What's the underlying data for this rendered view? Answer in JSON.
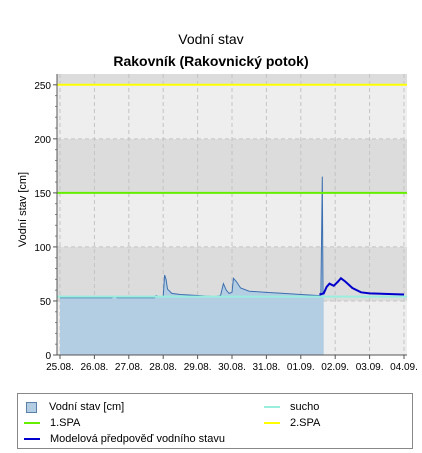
{
  "chart_data": {
    "type": "area",
    "title": "Vodní stav",
    "subtitle": "Rakovník (Rakovnický potok)",
    "ylabel": "Vodní stav [cm]",
    "xlabel": "",
    "ylim": [
      0,
      260
    ],
    "x_domain": [
      "25.08. 00:00",
      "04.09. 00:00"
    ],
    "yticks": [
      0,
      50,
      100,
      150,
      200,
      250
    ],
    "xtick_labels": [
      "25.08.",
      "26.08.",
      "27.08.",
      "28.08.",
      "29.08.",
      "30.08.",
      "31.08.",
      "01.09.",
      "02.09.",
      "03.09.",
      "04.09."
    ],
    "grid": true,
    "legend_position": "bottom",
    "series": [
      {
        "name": "Vodní stav [cm]",
        "kind": "observed-area",
        "points": [
          [
            "25.08. 00:00",
            53
          ],
          [
            "26.08. 00:00",
            53
          ],
          [
            "26.08. 12:00",
            53
          ],
          [
            "26.08. 14:00",
            54
          ],
          [
            "26.08. 16:00",
            53
          ],
          [
            "27.08. 00:00",
            53
          ],
          [
            "27.08. 18:00",
            53
          ],
          [
            "27.08. 19:00",
            55
          ],
          [
            "27.08. 21:00",
            54
          ],
          [
            "28.08. 00:00",
            54
          ],
          [
            "28.08. 01:00",
            74
          ],
          [
            "28.08. 02:00",
            70
          ],
          [
            "28.08. 03:00",
            61
          ],
          [
            "28.08. 06:00",
            57
          ],
          [
            "28.08. 12:00",
            56
          ],
          [
            "29.08. 00:00",
            55
          ],
          [
            "29.08. 12:00",
            54
          ],
          [
            "29.08. 16:00",
            55
          ],
          [
            "29.08. 18:00",
            66
          ],
          [
            "29.08. 20:00",
            60
          ],
          [
            "29.08. 22:00",
            57
          ],
          [
            "30.08. 00:00",
            58
          ],
          [
            "30.08. 01:00",
            71
          ],
          [
            "30.08. 03:00",
            68
          ],
          [
            "30.08. 06:00",
            62
          ],
          [
            "30.08. 12:00",
            59
          ],
          [
            "31.08. 00:00",
            58
          ],
          [
            "31.08. 12:00",
            57
          ],
          [
            "01.09. 00:00",
            56
          ],
          [
            "01.09. 12:00",
            55
          ],
          [
            "01.09. 14:00",
            55
          ],
          [
            "01.09. 15:00",
            165
          ],
          [
            "01.09. 15:30",
            57
          ],
          [
            "01.09. 16:00",
            56
          ]
        ]
      },
      {
        "name": "Modelová předpověď vodního stavu",
        "kind": "forecast-line",
        "color": "#0000cc",
        "points": [
          [
            "01.09. 13:00",
            56
          ],
          [
            "01.09. 16:00",
            57
          ],
          [
            "01.09. 18:00",
            63
          ],
          [
            "01.09. 20:00",
            66
          ],
          [
            "01.09. 23:00",
            64
          ],
          [
            "02.09. 02:00",
            68
          ],
          [
            "02.09. 04:00",
            71
          ],
          [
            "02.09. 07:00",
            68
          ],
          [
            "02.09. 12:00",
            62
          ],
          [
            "02.09. 18:00",
            58
          ],
          [
            "03.09. 00:00",
            57
          ],
          [
            "04.09. 00:00",
            56
          ]
        ]
      },
      {
        "name": "1.SPA",
        "kind": "threshold",
        "value": 150,
        "color": "#66ee00"
      },
      {
        "name": "2.SPA",
        "kind": "threshold",
        "value": 250,
        "color": "#ffff00"
      },
      {
        "name": "sucho",
        "kind": "threshold",
        "value": 54,
        "color": "#99eedd"
      }
    ],
    "colors": {
      "observed_fill": "#b3cde3",
      "observed_stroke": "#3b6fb0",
      "band_light": "#eeeeee",
      "band_dark": "#dcdcdc"
    }
  },
  "legend": {
    "observed": "Vodní stav [cm]",
    "spa1": "1.SPA",
    "forecast": "Modelová předpověď vodního stavu",
    "drought": "sucho",
    "spa2": "2.SPA"
  }
}
